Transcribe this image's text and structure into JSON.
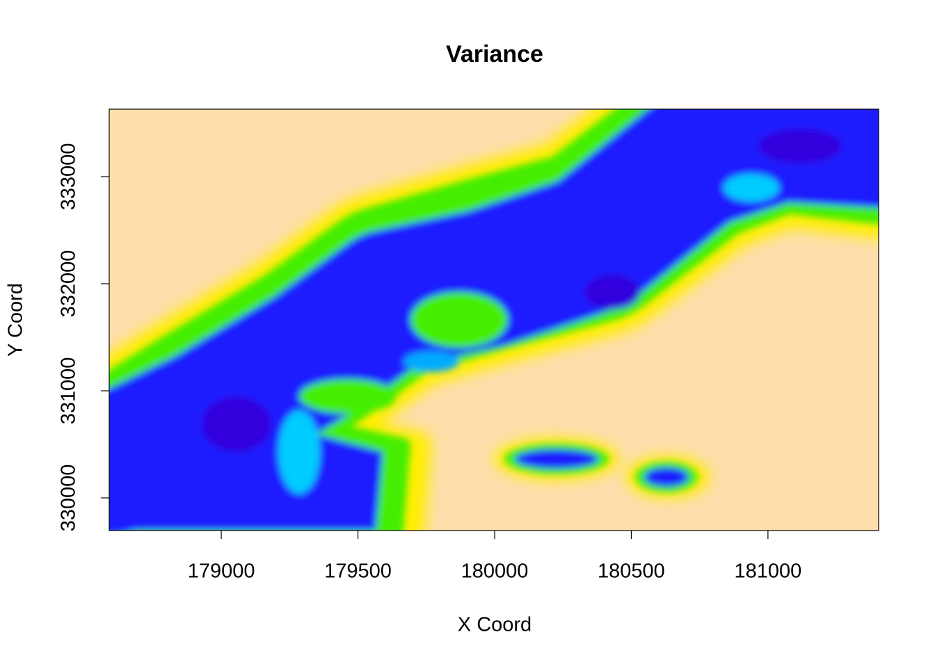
{
  "chart_data": {
    "type": "raster",
    "title": "Variance",
    "x_label": "X Coord",
    "y_label": "Y Coord",
    "xlim": [
      178590,
      181405
    ],
    "ylim": [
      329695,
      333630
    ],
    "xticks": [
      179000,
      179500,
      180000,
      180500,
      181000
    ],
    "yticks": [
      330000,
      331000,
      332000,
      333000
    ]
  }
}
